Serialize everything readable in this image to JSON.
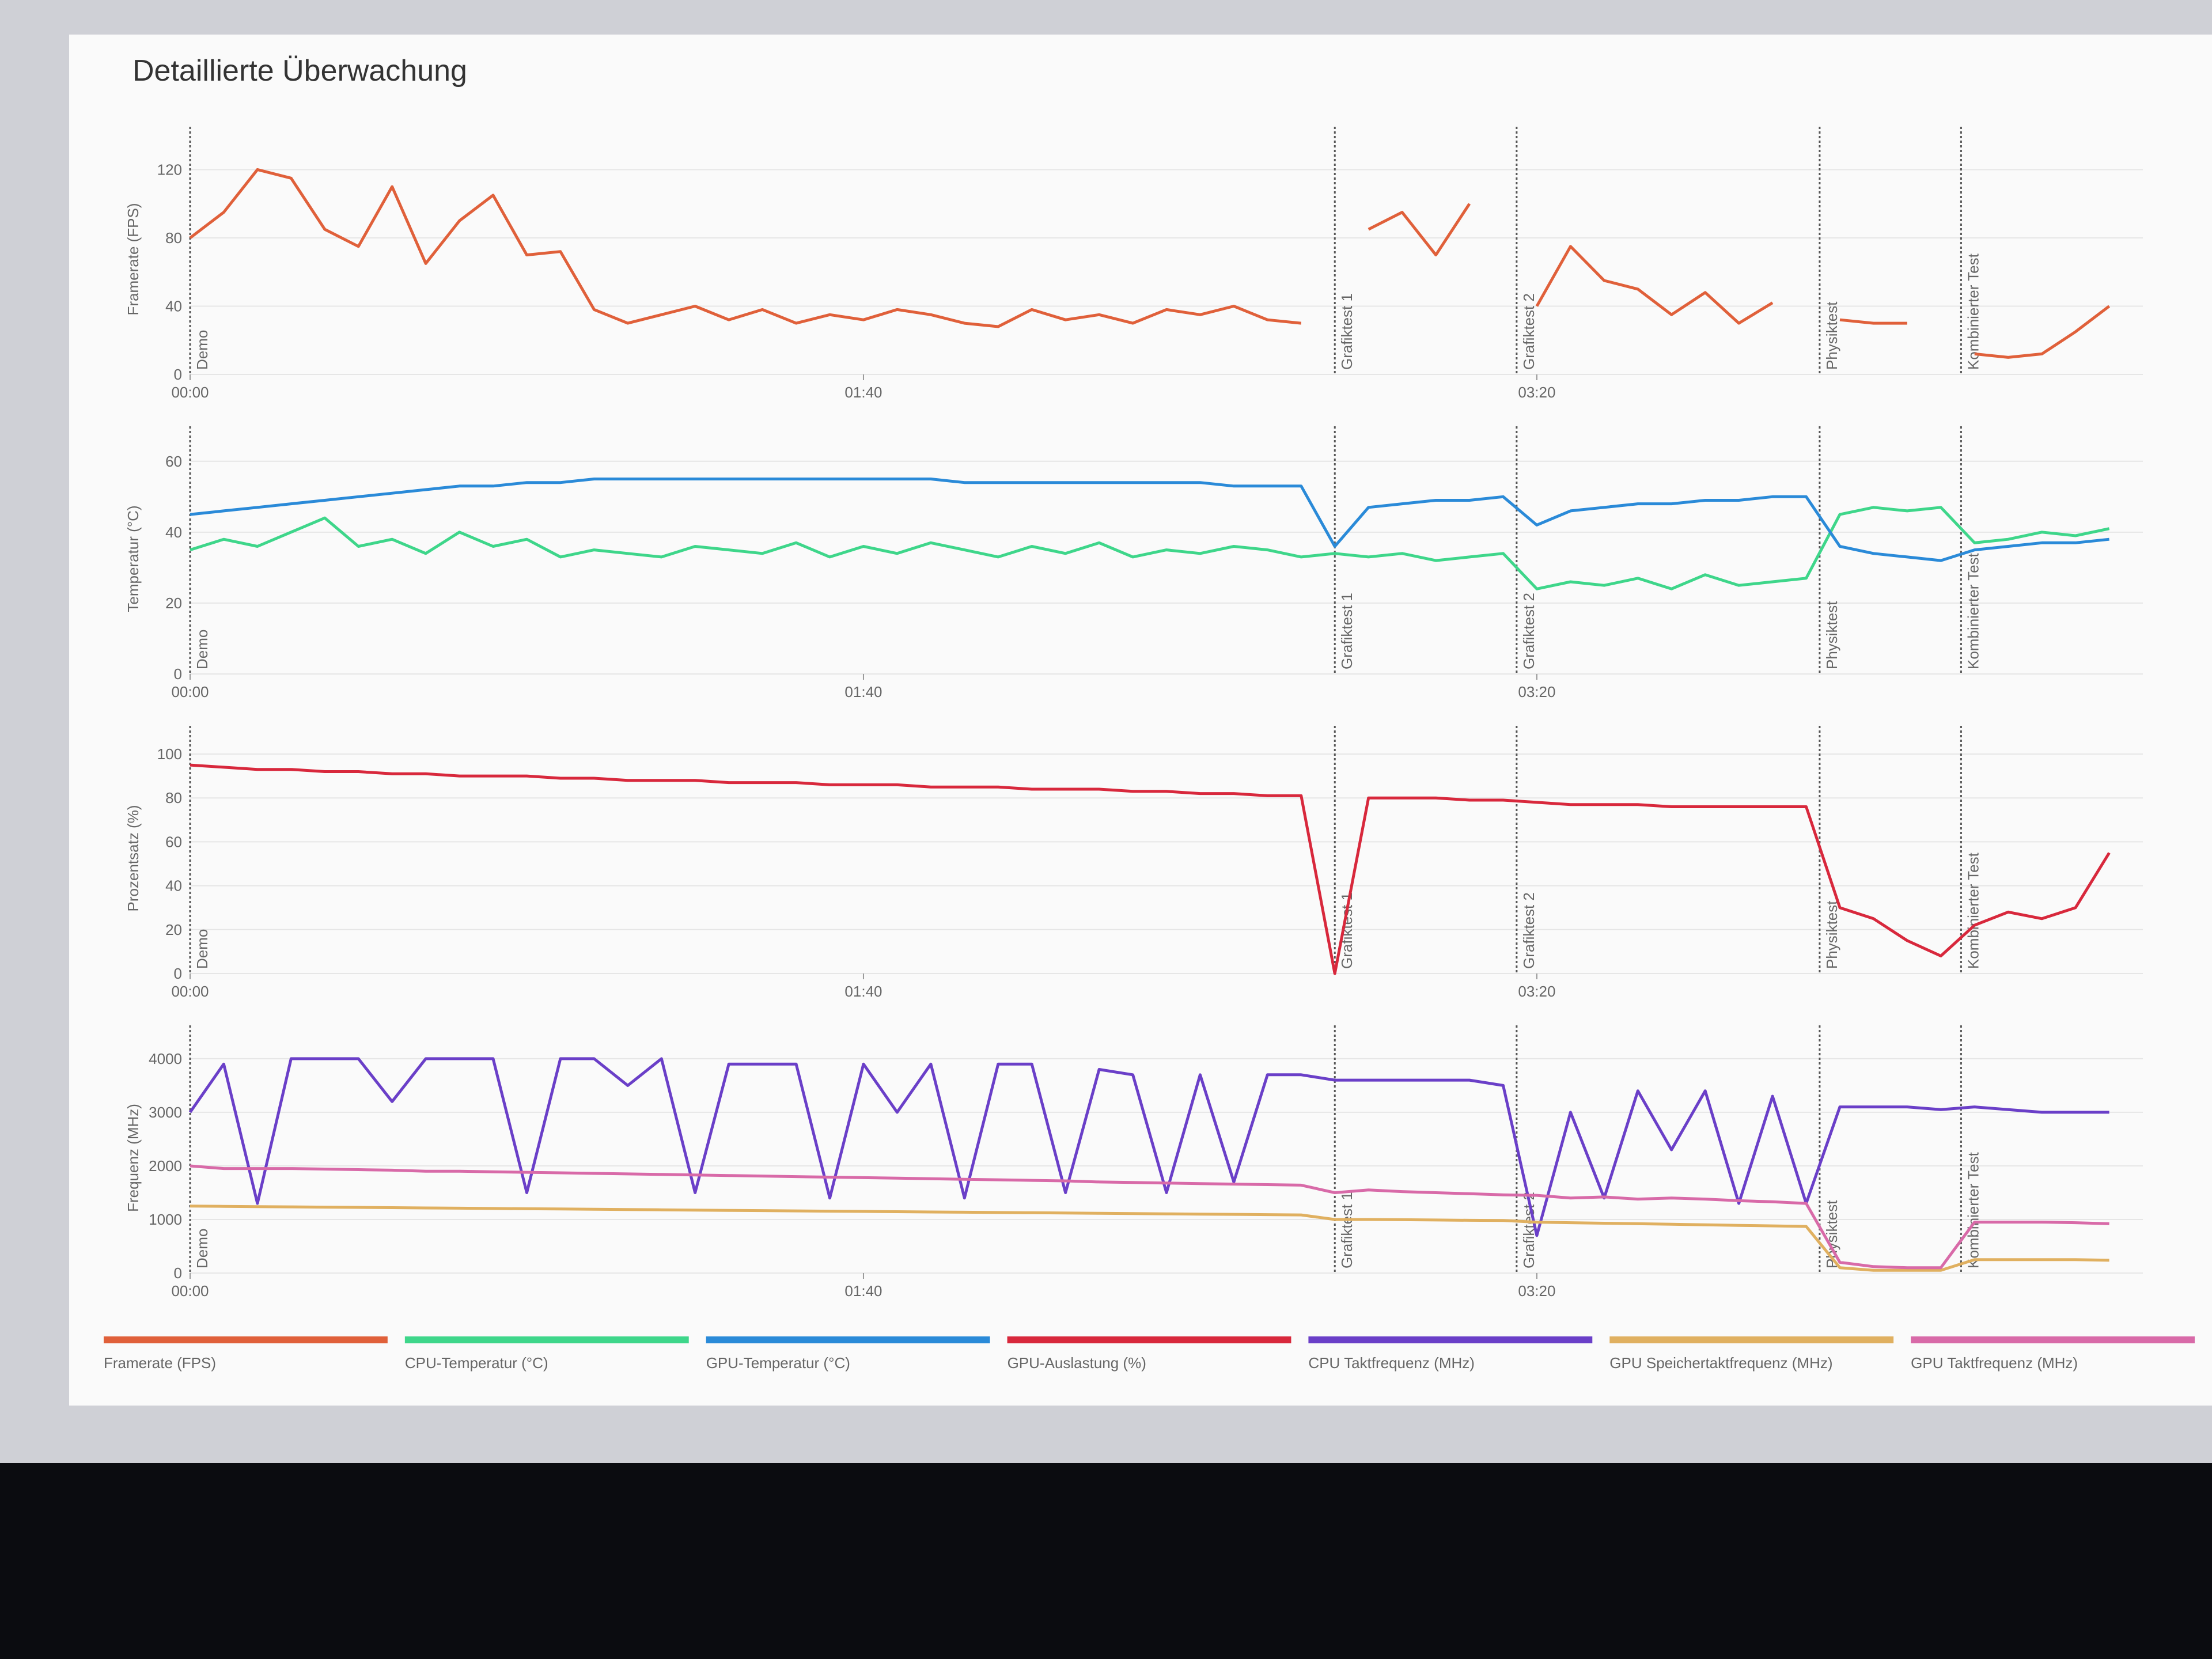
{
  "title": "Detaillierte Überwachung",
  "chart_data": [
    {
      "type": "line",
      "ylabel": "Framerate (FPS)",
      "x": [
        0,
        5,
        10,
        15,
        20,
        25,
        30,
        35,
        40,
        45,
        50,
        55,
        60,
        65,
        70,
        75,
        80,
        85,
        90,
        95,
        100,
        105,
        110,
        115,
        120,
        125,
        130,
        135,
        140,
        145,
        150,
        155,
        160,
        165,
        170,
        175,
        180,
        185,
        190,
        195,
        200,
        205,
        210,
        215,
        220,
        225,
        230,
        235,
        240,
        245,
        250,
        255,
        260,
        265,
        270,
        275,
        280,
        285
      ],
      "xlim": [
        0,
        290
      ],
      "xticks": [
        {
          "value": 0,
          "label": "00:00"
        },
        {
          "value": 100,
          "label": "01:40"
        },
        {
          "value": 200,
          "label": "03:20"
        }
      ],
      "ylim": [
        0,
        135
      ],
      "yticks": [
        0,
        40,
        80,
        120
      ],
      "grid": true,
      "annotations": [
        {
          "x": 0,
          "label": "Demo"
        },
        {
          "x": 170,
          "label": "Grafiktest 1"
        },
        {
          "x": 197,
          "label": "Grafiktest 2"
        },
        {
          "x": 242,
          "label": "Physiktest"
        },
        {
          "x": 263,
          "label": "Kombinierter Test"
        }
      ],
      "series": [
        {
          "name": "Framerate (FPS)",
          "color": "#e0603a",
          "values": [
            80,
            95,
            120,
            115,
            85,
            75,
            110,
            65,
            90,
            105,
            70,
            72,
            38,
            30,
            35,
            40,
            32,
            38,
            30,
            35,
            32,
            38,
            35,
            30,
            28,
            38,
            32,
            35,
            30,
            38,
            35,
            40,
            32,
            30,
            null,
            85,
            95,
            70,
            100,
            null,
            40,
            75,
            55,
            50,
            35,
            48,
            30,
            42,
            null,
            32,
            30,
            30,
            null,
            12,
            10,
            12,
            25,
            40
          ]
        }
      ]
    },
    {
      "type": "line",
      "ylabel": "Temperatur (°C)",
      "x": [
        0,
        5,
        10,
        15,
        20,
        25,
        30,
        35,
        40,
        45,
        50,
        55,
        60,
        65,
        70,
        75,
        80,
        85,
        90,
        95,
        100,
        105,
        110,
        115,
        120,
        125,
        130,
        135,
        140,
        145,
        150,
        155,
        160,
        165,
        170,
        175,
        180,
        185,
        190,
        195,
        200,
        205,
        210,
        215,
        220,
        225,
        230,
        235,
        240,
        245,
        250,
        255,
        260,
        265,
        270,
        275,
        280,
        285
      ],
      "xlim": [
        0,
        290
      ],
      "xticks": [
        {
          "value": 0,
          "label": "00:00"
        },
        {
          "value": 100,
          "label": "01:40"
        },
        {
          "value": 200,
          "label": "03:20"
        }
      ],
      "ylim": [
        0,
        65
      ],
      "yticks": [
        0,
        20,
        40,
        60
      ],
      "grid": true,
      "annotations": [
        {
          "x": 0,
          "label": "Demo"
        },
        {
          "x": 170,
          "label": "Grafiktest 1"
        },
        {
          "x": 197,
          "label": "Grafiktest 2"
        },
        {
          "x": 242,
          "label": "Physiktest"
        },
        {
          "x": 263,
          "label": "Kombinierter Test"
        }
      ],
      "series": [
        {
          "name": "CPU-Temperatur (°C)",
          "color": "#3ed68a",
          "values": [
            35,
            38,
            36,
            40,
            44,
            36,
            38,
            34,
            40,
            36,
            38,
            33,
            35,
            34,
            33,
            36,
            35,
            34,
            37,
            33,
            36,
            34,
            37,
            35,
            33,
            36,
            34,
            37,
            33,
            35,
            34,
            36,
            35,
            33,
            34,
            33,
            34,
            32,
            33,
            34,
            24,
            26,
            25,
            27,
            24,
            28,
            25,
            26,
            27,
            45,
            47,
            46,
            47,
            37,
            38,
            40,
            39,
            41
          ]
        },
        {
          "name": "GPU-Temperatur (°C)",
          "color": "#2a8ad8",
          "values": [
            45,
            46,
            47,
            48,
            49,
            50,
            51,
            52,
            53,
            53,
            54,
            54,
            55,
            55,
            55,
            55,
            55,
            55,
            55,
            55,
            55,
            55,
            55,
            54,
            54,
            54,
            54,
            54,
            54,
            54,
            54,
            53,
            53,
            53,
            36,
            47,
            48,
            49,
            49,
            50,
            42,
            46,
            47,
            48,
            48,
            49,
            49,
            50,
            50,
            36,
            34,
            33,
            32,
            35,
            36,
            37,
            37,
            38
          ]
        }
      ]
    },
    {
      "type": "line",
      "ylabel": "Prozentsatz (%)",
      "x": [
        0,
        5,
        10,
        15,
        20,
        25,
        30,
        35,
        40,
        45,
        50,
        55,
        60,
        65,
        70,
        75,
        80,
        85,
        90,
        95,
        100,
        105,
        110,
        115,
        120,
        125,
        130,
        135,
        140,
        145,
        150,
        155,
        160,
        165,
        170,
        175,
        180,
        185,
        190,
        195,
        200,
        205,
        210,
        215,
        220,
        225,
        230,
        235,
        240,
        245,
        250,
        255,
        260,
        265,
        270,
        275,
        280,
        285
      ],
      "xlim": [
        0,
        290
      ],
      "xticks": [
        {
          "value": 0,
          "label": "00:00"
        },
        {
          "value": 100,
          "label": "01:40"
        },
        {
          "value": 200,
          "label": "03:20"
        }
      ],
      "ylim": [
        0,
        105
      ],
      "yticks": [
        0,
        20,
        40,
        60,
        80,
        100
      ],
      "grid": true,
      "annotations": [
        {
          "x": 0,
          "label": "Demo"
        },
        {
          "x": 170,
          "label": "Grafiktest 1"
        },
        {
          "x": 197,
          "label": "Grafiktest 2"
        },
        {
          "x": 242,
          "label": "Physiktest"
        },
        {
          "x": 263,
          "label": "Kombinierter Test"
        }
      ],
      "series": [
        {
          "name": "GPU-Auslastung (%)",
          "color": "#d8283c",
          "values": [
            95,
            94,
            93,
            93,
            92,
            92,
            91,
            91,
            90,
            90,
            90,
            89,
            89,
            88,
            88,
            88,
            87,
            87,
            87,
            86,
            86,
            86,
            85,
            85,
            85,
            84,
            84,
            84,
            83,
            83,
            82,
            82,
            81,
            81,
            0,
            80,
            80,
            80,
            79,
            79,
            78,
            77,
            77,
            77,
            76,
            76,
            76,
            76,
            76,
            30,
            25,
            15,
            8,
            22,
            28,
            25,
            30,
            55
          ]
        }
      ]
    },
    {
      "type": "line",
      "ylabel": "Frequenz (MHz)",
      "x": [
        0,
        5,
        10,
        15,
        20,
        25,
        30,
        35,
        40,
        45,
        50,
        55,
        60,
        65,
        70,
        75,
        80,
        85,
        90,
        95,
        100,
        105,
        110,
        115,
        120,
        125,
        130,
        135,
        140,
        145,
        150,
        155,
        160,
        165,
        170,
        175,
        180,
        185,
        190,
        195,
        200,
        205,
        210,
        215,
        220,
        225,
        230,
        235,
        240,
        245,
        250,
        255,
        260,
        265,
        270,
        275,
        280,
        285
      ],
      "xlim": [
        0,
        290
      ],
      "xticks": [
        {
          "value": 0,
          "label": "00:00"
        },
        {
          "value": 100,
          "label": "01:40"
        },
        {
          "value": 200,
          "label": "03:20"
        }
      ],
      "ylim": [
        0,
        4300
      ],
      "yticks": [
        0,
        1000,
        2000,
        3000,
        4000
      ],
      "grid": true,
      "annotations": [
        {
          "x": 0,
          "label": "Demo"
        },
        {
          "x": 170,
          "label": "Grafiktest 1"
        },
        {
          "x": 197,
          "label": "Grafiktest 2"
        },
        {
          "x": 242,
          "label": "Physiktest"
        },
        {
          "x": 263,
          "label": "Kombinierter Test"
        }
      ],
      "series": [
        {
          "name": "CPU Taktfrequenz (MHz)",
          "color": "#6a3fc8",
          "values": [
            3000,
            3900,
            1300,
            4000,
            4000,
            4000,
            3200,
            4000,
            4000,
            4000,
            1500,
            4000,
            4000,
            3500,
            4000,
            1500,
            3900,
            3900,
            3900,
            1400,
            3900,
            3000,
            3900,
            1400,
            3900,
            3900,
            1500,
            3800,
            3700,
            1500,
            3700,
            1700,
            3700,
            3700,
            3600,
            3600,
            3600,
            3600,
            3600,
            3500,
            700,
            3000,
            1400,
            3400,
            2300,
            3400,
            1300,
            3300,
            1300,
            3100,
            3100,
            3100,
            3050,
            3100,
            3050,
            3000,
            3000,
            3000
          ]
        },
        {
          "name": "GPU Speichertaktfrequenz (MHz)",
          "color": "#e0b060",
          "values": [
            1250,
            1245,
            1240,
            1235,
            1230,
            1225,
            1220,
            1215,
            1210,
            1205,
            1200,
            1195,
            1190,
            1185,
            1180,
            1175,
            1170,
            1165,
            1160,
            1155,
            1150,
            1145,
            1140,
            1135,
            1130,
            1125,
            1120,
            1115,
            1110,
            1105,
            1100,
            1095,
            1090,
            1085,
            1000,
            1000,
            995,
            990,
            985,
            980,
            950,
            940,
            930,
            920,
            910,
            900,
            890,
            880,
            870,
            100,
            50,
            50,
            50,
            250,
            250,
            250,
            250,
            240
          ]
        },
        {
          "name": "GPU Taktfrequenz (MHz)",
          "color": "#d86aa8",
          "values": [
            2000,
            1950,
            1950,
            1950,
            1940,
            1930,
            1920,
            1900,
            1900,
            1890,
            1880,
            1870,
            1860,
            1850,
            1840,
            1830,
            1820,
            1810,
            1800,
            1790,
            1780,
            1770,
            1760,
            1750,
            1740,
            1730,
            1720,
            1700,
            1690,
            1680,
            1670,
            1660,
            1650,
            1640,
            1500,
            1550,
            1520,
            1500,
            1480,
            1460,
            1450,
            1400,
            1420,
            1380,
            1400,
            1380,
            1350,
            1330,
            1300,
            200,
            120,
            100,
            100,
            950,
            950,
            950,
            940,
            920
          ]
        }
      ]
    }
  ]
}
